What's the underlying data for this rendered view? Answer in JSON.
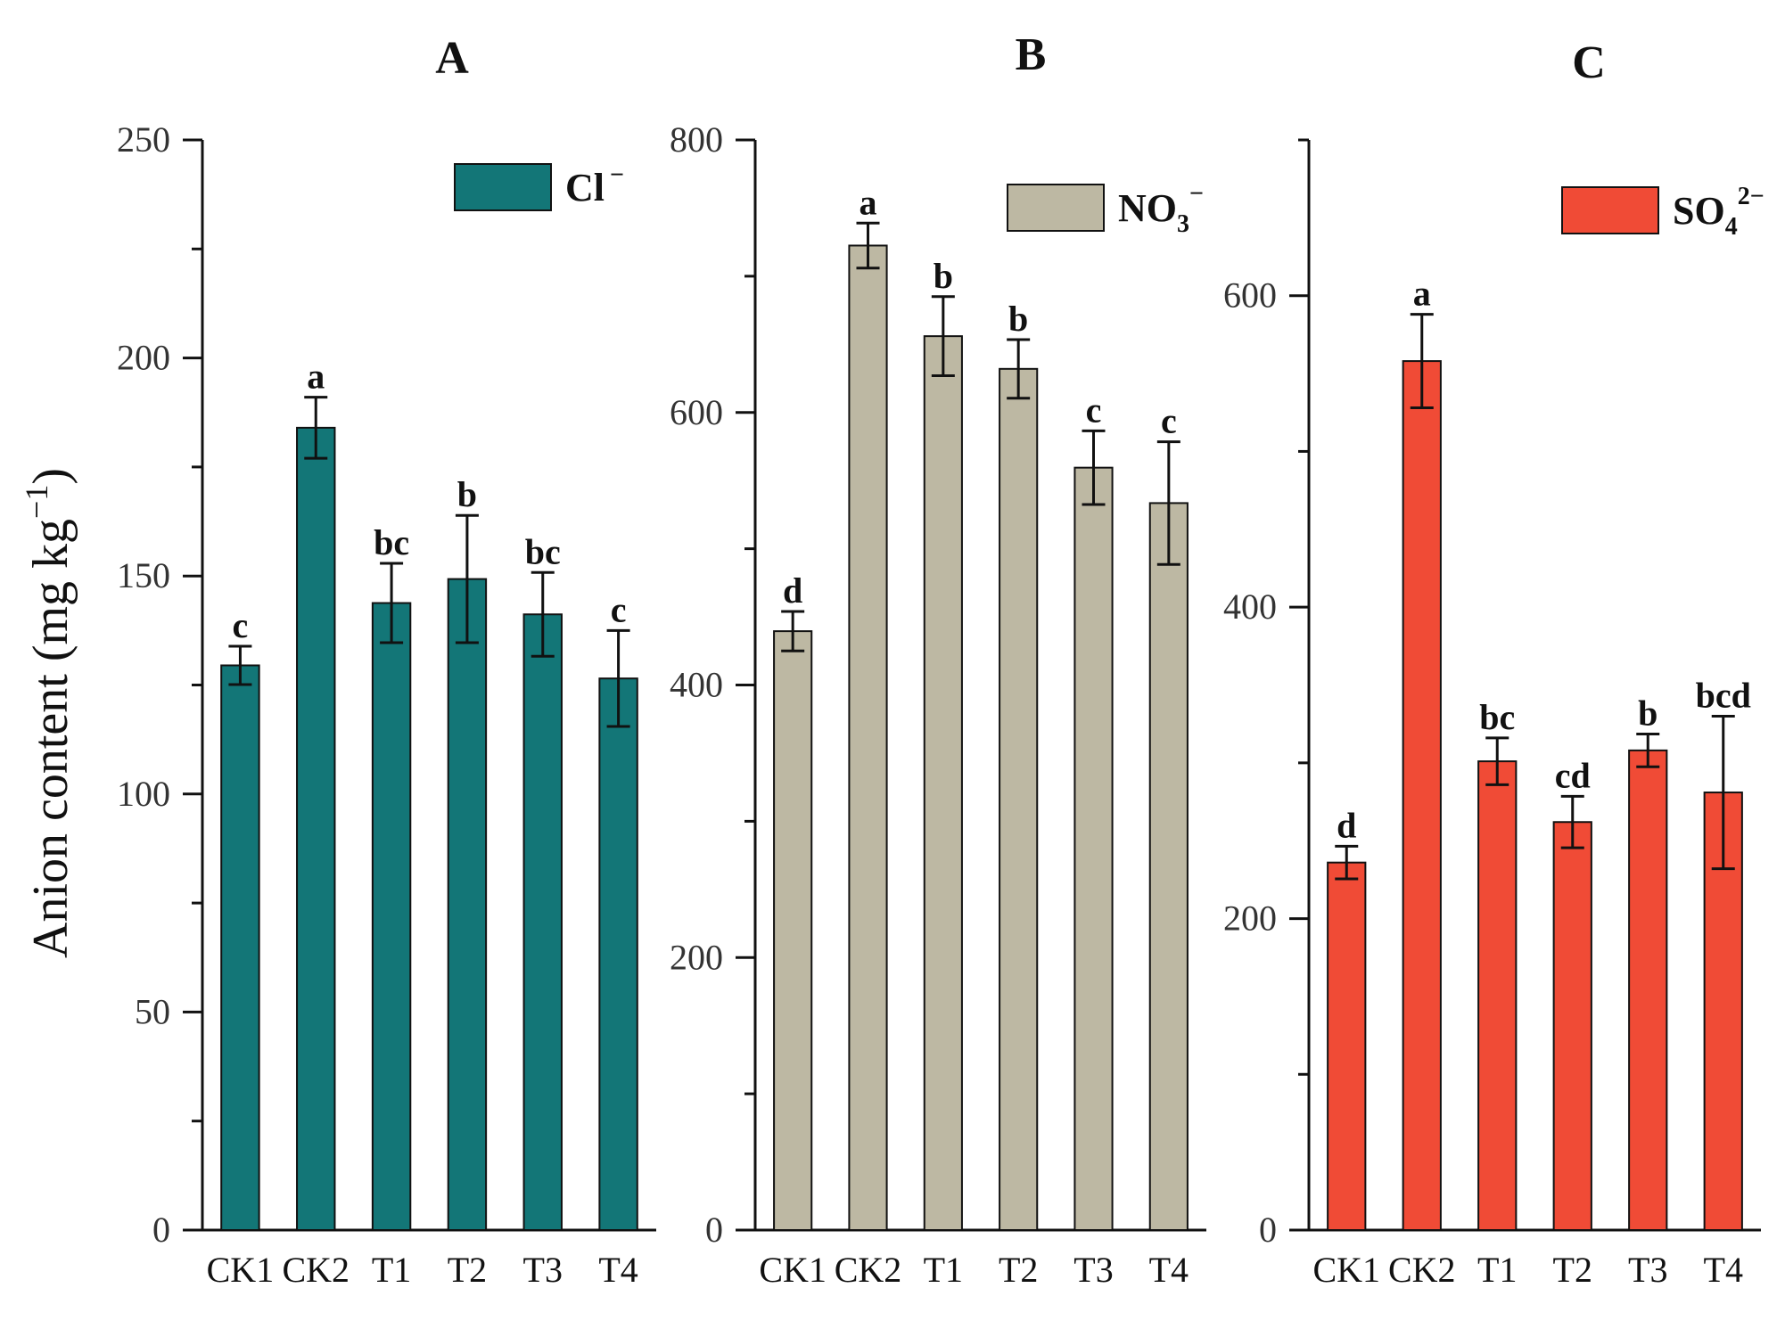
{
  "y_axis_title": {
    "prefix": "Anion content (mg kg",
    "superscript": "−1",
    "suffix": ")"
  },
  "chart_data": [
    {
      "type": "bar",
      "panel": "A",
      "title": "A",
      "ion": "Cl",
      "legend": {
        "base": "Cl",
        "sub": "",
        "sup": "−"
      },
      "color": "#137677",
      "categories": [
        "CK1",
        "CK2",
        "T1",
        "T2",
        "T3",
        "T4"
      ],
      "values": [
        129.5,
        184,
        143.8,
        149.3,
        141.2,
        126.5
      ],
      "errors": [
        4.4,
        7,
        9.1,
        14.6,
        9.6,
        11
      ],
      "significance": [
        "c",
        "a",
        "bc",
        "b",
        "bc",
        "c"
      ],
      "ylim": [
        0,
        250
      ],
      "yticks": [
        0,
        50,
        100,
        150,
        200,
        250
      ],
      "minor_step": 25,
      "xlabel": "",
      "ylabel": "Anion content (mg kg−1)"
    },
    {
      "type": "bar",
      "panel": "B",
      "title": "B",
      "ion": "NO3",
      "legend": {
        "base": "NO",
        "sub": "3",
        "sup": "−"
      },
      "color": "#bdb8a3",
      "categories": [
        "CK1",
        "CK2",
        "T1",
        "T2",
        "T3",
        "T4"
      ],
      "values": [
        439.5,
        722.5,
        656,
        632,
        559.5,
        533.5
      ],
      "errors": [
        14.5,
        16.5,
        29,
        21.5,
        27,
        45
      ],
      "significance": [
        "d",
        "a",
        "b",
        "b",
        "c",
        "c"
      ],
      "ylim": [
        0,
        800
      ],
      "yticks": [
        0,
        200,
        400,
        600,
        800
      ],
      "minor_step": 100,
      "xlabel": "",
      "ylabel": ""
    },
    {
      "type": "bar",
      "panel": "C",
      "title": "C",
      "ion": "SO4",
      "legend": {
        "base": "SO",
        "sub": "4",
        "sup": "2−"
      },
      "color": "#f04b36",
      "categories": [
        "CK1",
        "CK2",
        "T1",
        "T2",
        "T3",
        "T4"
      ],
      "values": [
        236,
        558,
        301,
        262,
        308,
        281
      ],
      "errors": [
        10.5,
        30,
        15,
        16.5,
        10.5,
        49
      ],
      "significance": [
        "d",
        "a",
        "bc",
        "cd",
        "b",
        "bcd"
      ],
      "ylim": [
        0,
        700
      ],
      "yticks": [
        0,
        200,
        400,
        600
      ],
      "minor_step": 100,
      "xlabel": "",
      "ylabel": ""
    }
  ]
}
